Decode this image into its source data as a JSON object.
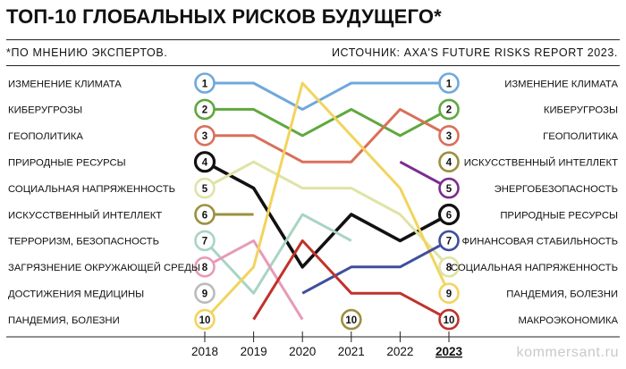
{
  "header": {
    "title": "ТОП-10 ГЛОБАЛЬНЫХ РИСКОВ БУДУЩЕГО*",
    "note": "*ПО МНЕНИЮ ЭКСПЕРТОВ.",
    "source": "ИСТОЧНИК: AXA'S FUTURE RISKS REPORT 2023."
  },
  "watermark": "kommersant.ru",
  "chart_data": {
    "type": "line",
    "title": "ТОП-10 ГЛОБАЛЬНЫХ РИСКОВ БУДУЩЕГО*",
    "x": [
      "2018",
      "2019",
      "2020",
      "2021",
      "2022",
      "2023"
    ],
    "highlight_x": "2023",
    "y_axis": {
      "meaning": "rank",
      "range": [
        1,
        10
      ],
      "inverted": true
    },
    "ranks": [
      1,
      2,
      3,
      4,
      5,
      6,
      7,
      8,
      9,
      10
    ],
    "left_labels": [
      "ИЗМЕНЕНИЕ КЛИМАТА",
      "КИБЕРУГРОЗЫ",
      "ГЕОПОЛИТИКА",
      "ПРИРОДНЫЕ РЕСУРСЫ",
      "СОЦИАЛЬНАЯ НАПРЯЖЕННОСТЬ",
      "ИСКУССТВЕННЫЙ ИНТЕЛЛЕКТ",
      "ТЕРРОРИЗМ, БЕЗОПАСНОСТЬ",
      "ЗАГРЯЗНЕНИЕ ОКРУЖАЮЩЕЙ СРЕДЫ",
      "ДОСТИЖЕНИЯ МЕДИЦИНЫ",
      "ПАНДЕМИЯ, БОЛЕЗНИ"
    ],
    "right_labels": [
      "ИЗМЕНЕНИЕ КЛИМАТА",
      "КИБЕРУГРОЗЫ",
      "ГЕОПОЛИТИКА",
      "ИСКУССТВЕННЫЙ ИНТЕЛЛЕКТ",
      "ЭНЕРГОБЕЗОПАСНОСТЬ",
      "ПРИРОДНЫЕ РЕСУРСЫ",
      "ФИНАНСОВАЯ СТАБИЛЬНОСТЬ",
      "СОЦИАЛЬНАЯ НАПРЯЖЕННОСТЬ",
      "ПАНДЕМИЯ, БОЛЕЗНИ",
      "МАКРОЭКОНОМИКА"
    ],
    "series": [
      {
        "name": "ИЗМЕНЕНИЕ КЛИМАТА",
        "color": "#6fa8dc",
        "values": [
          1,
          1,
          2,
          1,
          1,
          1
        ]
      },
      {
        "name": "КИБЕРУГРОЗЫ",
        "color": "#5fa83e",
        "values": [
          2,
          2,
          3,
          2,
          3,
          2
        ]
      },
      {
        "name": "ГЕОПОЛИТИКА",
        "color": "#d9705a",
        "values": [
          3,
          3,
          4,
          4,
          2,
          3
        ]
      },
      {
        "name": "ПРИРОДНЫЕ РЕСУРСЫ",
        "color": "#111111",
        "values": [
          4,
          5,
          8,
          6,
          7,
          6
        ]
      },
      {
        "name": "СОЦИАЛЬНАЯ НАПРЯЖЕННОСТЬ",
        "color": "#dfe3a6",
        "values": [
          5,
          4,
          5,
          5,
          6,
          8
        ]
      },
      {
        "name": "ИСКУССТВЕННЫЙ ИНТЕЛЛЕКТ",
        "color": "#9b9040",
        "values": [
          6,
          6,
          null,
          null,
          null,
          4
        ]
      },
      {
        "name": "ТЕРРОРИЗМ, БЕЗОПАСНОСТЬ",
        "color": "#a9d4c2",
        "values": [
          7,
          9,
          6,
          7,
          null,
          null
        ]
      },
      {
        "name": "ЗАГРЯЗНЕНИЕ ОКРУЖАЮЩЕЙ СРЕДЫ",
        "color": "#e89ab8",
        "values": [
          8,
          7,
          10,
          null,
          null,
          null
        ]
      },
      {
        "name": "ДОСТИЖЕНИЯ МЕДИЦИНЫ",
        "color": "#bbbbbb",
        "values": [
          9,
          null,
          null,
          null,
          null,
          null
        ]
      },
      {
        "name": "ПАНДЕМИЯ, БОЛЕЗНИ",
        "color": "#f2d45e",
        "values": [
          10,
          8,
          1,
          3,
          5,
          9
        ]
      },
      {
        "name": "ЭНЕРГОБЕЗОПАСНОСТЬ",
        "color": "#7b2d8e",
        "values": [
          null,
          null,
          null,
          null,
          4,
          5
        ]
      },
      {
        "name": "ФИНАНСОВАЯ СТАБИЛЬНОСТЬ",
        "color": "#3e4f9b",
        "values": [
          null,
          null,
          9,
          8,
          8,
          7
        ]
      },
      {
        "name": "МАКРОЭКОНОМИКА",
        "color": "#c0322b",
        "values": [
          null,
          10,
          7,
          9,
          9,
          10
        ]
      },
      {
        "name": "",
        "color": "#9b9040",
        "values": [
          null,
          null,
          null,
          10,
          null,
          null
        ]
      }
    ],
    "markers": [
      {
        "x": "2018",
        "series": [
          0,
          1,
          2,
          3,
          4,
          5,
          6,
          7,
          8,
          9
        ]
      },
      {
        "x": "2021",
        "series": [
          13
        ]
      },
      {
        "x": "2023",
        "series": [
          0,
          1,
          2,
          5,
          10,
          3,
          11,
          4,
          9,
          12
        ]
      }
    ],
    "grid": false
  }
}
